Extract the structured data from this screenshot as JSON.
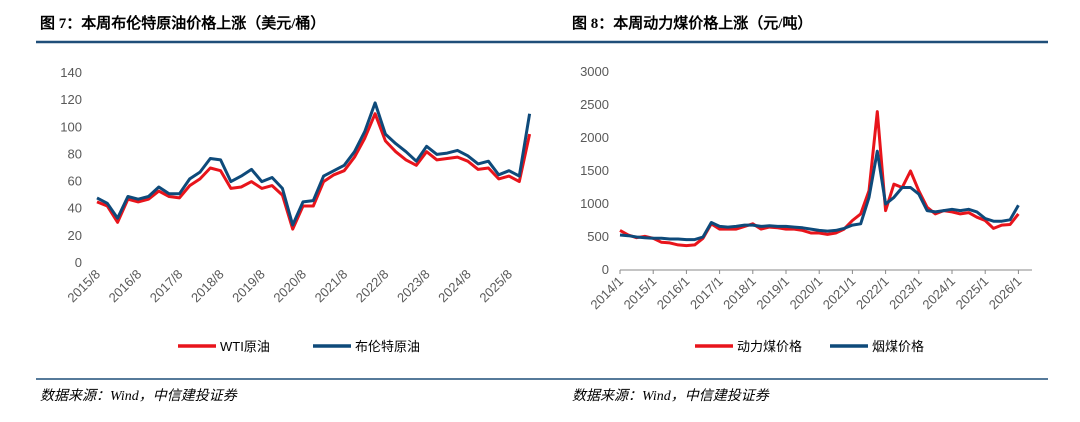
{
  "chart_data": [
    {
      "type": "line",
      "title": "图 7：本周布伦特原油价格上涨（美元/桶）",
      "source": "数据来源：Wind，中信建投证券",
      "categories": [
        "2015/8",
        null,
        null,
        null,
        "2016/8",
        null,
        null,
        null,
        "2017/8",
        null,
        null,
        null,
        "2018/8",
        null,
        null,
        null,
        "2019/8",
        null,
        null,
        null,
        "2020/8",
        null,
        null,
        null,
        "2021/8",
        null,
        null,
        null,
        "2022/8",
        null,
        null,
        null,
        "2023/8",
        null,
        null,
        null,
        "2024/8",
        null,
        null,
        null,
        "2025/8",
        null,
        null
      ],
      "series": [
        {
          "name": "WTI原油",
          "color": "#e8141b",
          "values": [
            45,
            42,
            30,
            47,
            45,
            47,
            53,
            49,
            48,
            57,
            62,
            70,
            68,
            55,
            56,
            60,
            55,
            57,
            50,
            25,
            42,
            42,
            60,
            65,
            68,
            78,
            92,
            110,
            90,
            82,
            76,
            72,
            82,
            76,
            77,
            78,
            75,
            69,
            70,
            62,
            64,
            60,
            95
          ]
        },
        {
          "name": "布伦特原油",
          "color": "#0e4a7a",
          "values": [
            48,
            44,
            33,
            49,
            47,
            49,
            56,
            51,
            51,
            62,
            67,
            77,
            76,
            60,
            64,
            69,
            60,
            63,
            55,
            28,
            45,
            46,
            64,
            68,
            72,
            82,
            97,
            118,
            95,
            88,
            82,
            75,
            86,
            80,
            81,
            83,
            79,
            73,
            75,
            65,
            68,
            64,
            110
          ]
        }
      ],
      "ylim": [
        0,
        140
      ],
      "yticks": [
        0,
        20,
        40,
        60,
        80,
        100,
        120,
        140
      ]
    },
    {
      "type": "line",
      "title": "图 8：本周动力煤价格上涨（元/吨）",
      "source": "数据来源：Wind，中信建投证券",
      "categories": [
        "2014/1",
        null,
        null,
        null,
        "2015/1",
        null,
        null,
        null,
        "2016/1",
        null,
        null,
        null,
        "2017/1",
        null,
        null,
        null,
        "2018/1",
        null,
        null,
        null,
        "2019/1",
        null,
        null,
        null,
        "2020/1",
        null,
        null,
        null,
        "2021/1",
        null,
        null,
        null,
        "2022/1",
        null,
        null,
        null,
        "2023/1",
        null,
        null,
        null,
        "2024/1",
        null,
        null,
        null,
        "2025/1",
        null,
        null,
        null,
        "2026/1"
      ],
      "series": [
        {
          "name": "动力煤价格",
          "color": "#e8141b",
          "values": [
            600,
            530,
            490,
            510,
            480,
            420,
            410,
            380,
            370,
            380,
            480,
            700,
            620,
            620,
            620,
            660,
            700,
            620,
            650,
            640,
            620,
            620,
            600,
            560,
            560,
            540,
            560,
            620,
            750,
            850,
            1200,
            2400,
            900,
            1300,
            1250,
            1500,
            1200,
            950,
            850,
            900,
            880,
            850,
            870,
            800,
            750,
            630,
            680,
            690,
            850
          ]
        },
        {
          "name": "烟煤价格",
          "color": "#0e4a7a",
          "values": [
            530,
            520,
            500,
            490,
            480,
            480,
            470,
            470,
            460,
            460,
            500,
            720,
            660,
            650,
            660,
            680,
            680,
            660,
            670,
            660,
            660,
            650,
            640,
            620,
            600,
            590,
            600,
            630,
            680,
            700,
            1100,
            1800,
            1000,
            1100,
            1250,
            1250,
            1150,
            900,
            880,
            900,
            920,
            900,
            920,
            880,
            780,
            740,
            740,
            760,
            980
          ]
        }
      ],
      "ylim": [
        0,
        3000
      ],
      "yticks": [
        0,
        500,
        1000,
        1500,
        2000,
        2500,
        3000
      ]
    }
  ]
}
